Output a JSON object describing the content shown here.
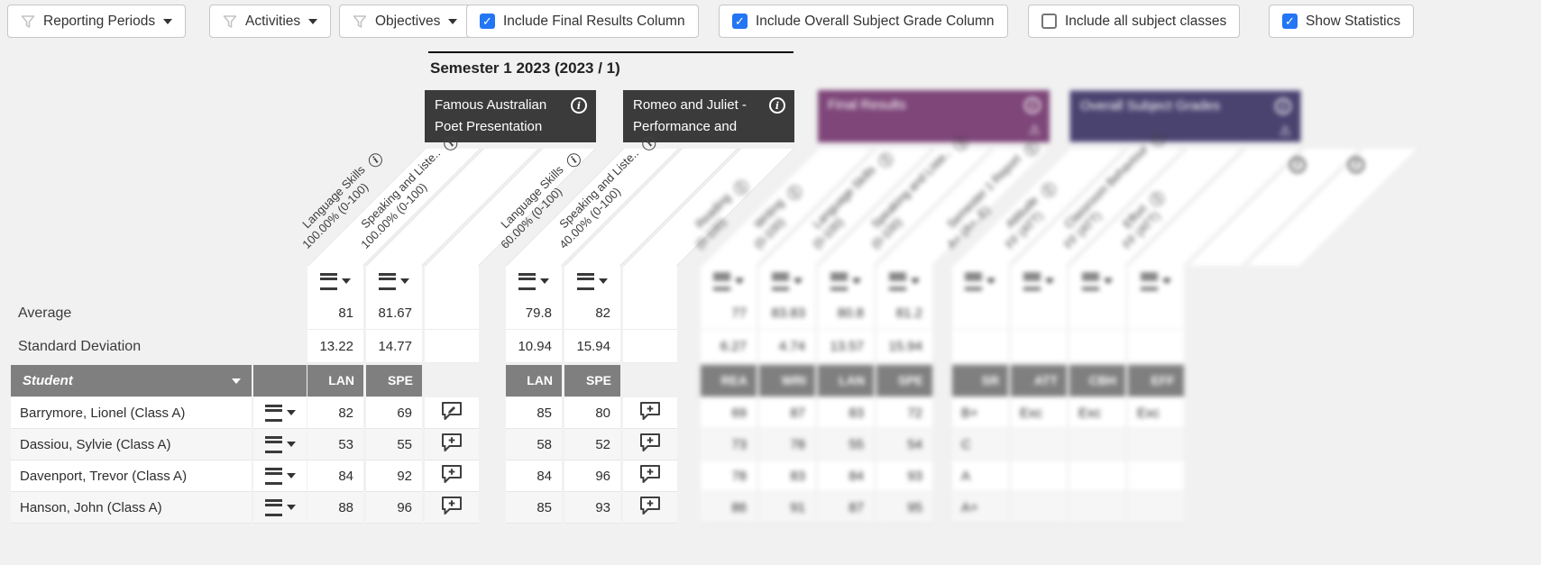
{
  "toolbar": {
    "filters": [
      {
        "label": "Reporting Periods"
      },
      {
        "label": "Activities"
      },
      {
        "label": "Objectives"
      }
    ],
    "checkboxes": [
      {
        "label": "Include Final Results Column",
        "checked": true
      },
      {
        "label": "Include Overall Subject Grade Column",
        "checked": true
      },
      {
        "label": "Include all subject classes",
        "checked": false
      },
      {
        "label": "Show Statistics",
        "checked": true
      }
    ]
  },
  "period": {
    "title": "Semester 1 2023 (2023 / 1)"
  },
  "stats": {
    "average_label": "Average",
    "std_dev_label": "Standard Deviation"
  },
  "table": {
    "student_header": "Student"
  },
  "groups": [
    {
      "title": "Famous Australian Poet Presentation",
      "style": "dark",
      "blurred": false,
      "comment_column": true,
      "has_warning": false,
      "columns": [
        {
          "code": "LAN",
          "objective": "Language Skills",
          "weight": "100.00% (0-100)",
          "average": "81",
          "std_dev": "13.22"
        },
        {
          "code": "SPE",
          "objective": "Speaking and Liste..",
          "weight": "100.00% (0-100)",
          "average": "81.67",
          "std_dev": "14.77"
        }
      ]
    },
    {
      "title": "Romeo and Juliet - Performance and",
      "style": "dark",
      "blurred": false,
      "comment_column": true,
      "has_warning": false,
      "columns": [
        {
          "code": "LAN",
          "objective": "Language Skills",
          "weight": "60.00% (0-100)",
          "average": "79.8",
          "std_dev": "10.94"
        },
        {
          "code": "SPE",
          "objective": "Speaking and Liste..",
          "weight": "40.00% (0-100)",
          "average": "82",
          "std_dev": "15.94"
        }
      ]
    },
    {
      "title": "Final Results",
      "style": "purple",
      "blurred": true,
      "comment_column": false,
      "has_warning": true,
      "columns": [
        {
          "code": "REA",
          "objective": "Reading",
          "weight": "(0-100)",
          "average": "77",
          "std_dev": "6.27"
        },
        {
          "code": "WRI",
          "objective": "Writing",
          "weight": "(0-100)",
          "average": "83.83",
          "std_dev": "4.74"
        },
        {
          "code": "LAN",
          "objective": "Language Skills",
          "weight": "(0-100)",
          "average": "80.8",
          "std_dev": "13.57"
        },
        {
          "code": "SPE",
          "objective": "Speaking and Liste..",
          "weight": "(0-100)",
          "average": "81.2",
          "std_dev": "15.94"
        }
      ]
    },
    {
      "title": "Overall Subject Grades",
      "style": "indigo",
      "blurred": true,
      "comment_column": false,
      "has_warning": true,
      "columns": [
        {
          "code": "SR",
          "objective": "Semester 1 Report",
          "weight": "A+ (A+..E)",
          "average": "",
          "std_dev": ""
        },
        {
          "code": "ATT",
          "objective": "Attitude",
          "weight": "FF (ATT)",
          "average": "",
          "std_dev": ""
        },
        {
          "code": "CBH",
          "objective": "Classroom Behaviour",
          "weight": "FF (ATT)",
          "average": "",
          "std_dev": ""
        },
        {
          "code": "EFF",
          "objective": "Effort",
          "weight": "FF (ATT)",
          "average": "",
          "std_dev": ""
        }
      ]
    }
  ],
  "rows": [
    {
      "student": "Barrymore, Lionel (Class A)",
      "marks": [
        [
          "82",
          "69"
        ],
        [
          "85",
          "80"
        ],
        [
          "69",
          "87",
          "83",
          "72"
        ],
        [
          "B+",
          "Exc",
          "Exc",
          "Exc"
        ]
      ],
      "comments": [
        "edit",
        "add"
      ]
    },
    {
      "student": "Dassiou, Sylvie (Class A)",
      "marks": [
        [
          "53",
          "55"
        ],
        [
          "58",
          "52"
        ],
        [
          "73",
          "78",
          "55",
          "54"
        ],
        [
          "C",
          "",
          "",
          ""
        ]
      ],
      "comments": [
        "add",
        "add"
      ]
    },
    {
      "student": "Davenport, Trevor (Class A)",
      "marks": [
        [
          "84",
          "92"
        ],
        [
          "84",
          "96"
        ],
        [
          "78",
          "83",
          "84",
          "93"
        ],
        [
          "A",
          "",
          "",
          ""
        ]
      ],
      "comments": [
        "add",
        "add"
      ]
    },
    {
      "student": "Hanson, John (Class A)",
      "marks": [
        [
          "88",
          "96"
        ],
        [
          "85",
          "93"
        ],
        [
          "86",
          "91",
          "87",
          "95"
        ],
        [
          "A+",
          "",
          "",
          ""
        ]
      ],
      "comments": [
        "add",
        "add"
      ]
    }
  ]
}
